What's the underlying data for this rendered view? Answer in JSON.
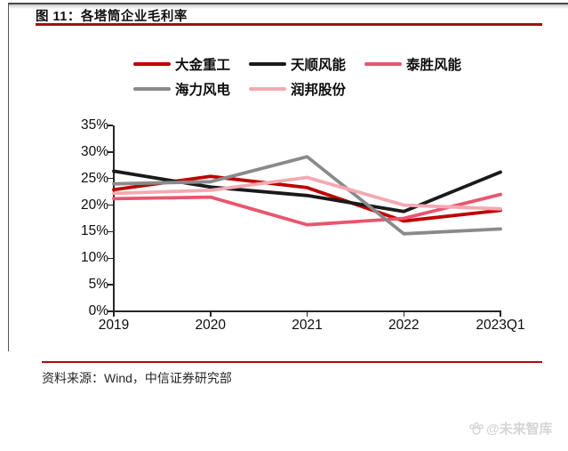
{
  "header": {
    "title": "图 11：各塔筒企业毛利率"
  },
  "colors": {
    "accent_red_rule": "#A40E13",
    "axis_color": "#262626",
    "watermark_gray": "#d5d5d5"
  },
  "chart_data": {
    "type": "line",
    "title": "各塔筒企业毛利率",
    "categories": [
      "2019",
      "2020",
      "2021",
      "2022",
      "2023Q1"
    ],
    "series": [
      {
        "name": "大金重工",
        "color": "#C00000",
        "values": [
          22.9,
          25.4,
          23.3,
          17.0,
          19.0
        ]
      },
      {
        "name": "天顺风能",
        "color": "#1A1A1A",
        "values": [
          26.4,
          23.4,
          21.8,
          18.8,
          26.2
        ]
      },
      {
        "name": "泰胜风能",
        "color": "#E8566F",
        "values": [
          21.2,
          21.5,
          16.3,
          17.5,
          22.0
        ]
      },
      {
        "name": "海力风电",
        "color": "#8A8A8A",
        "values": [
          24.0,
          24.4,
          29.1,
          14.6,
          15.5
        ]
      },
      {
        "name": "润邦股份",
        "color": "#F4A9B1",
        "values": [
          22.2,
          22.8,
          25.2,
          20.0,
          19.3
        ]
      }
    ],
    "xlabel": "",
    "ylabel": "",
    "ylim": [
      0,
      35
    ],
    "y_tick_step": 5,
    "y_tick_labels": [
      "0%",
      "5%",
      "10%",
      "15%",
      "20%",
      "25%",
      "30%",
      "35%"
    ],
    "grid": false,
    "legend_position": "top",
    "legend_rows": [
      [
        0,
        1,
        2
      ],
      [
        3,
        4
      ]
    ]
  },
  "source": {
    "text": "资料来源：Wind，中信证券研究部"
  },
  "watermark": {
    "icon": "paw-logo-icon",
    "text": "@未来智库"
  }
}
